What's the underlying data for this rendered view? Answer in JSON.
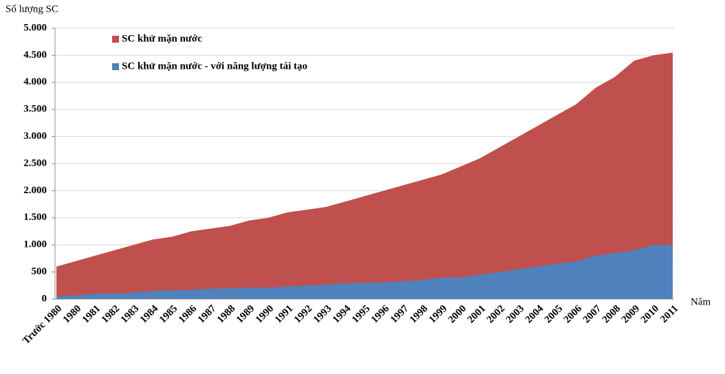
{
  "chart_data": {
    "type": "area",
    "y_label": "Số lượng SC",
    "x_label": "Năm",
    "categories": [
      "Trước 1980",
      "1980",
      "1981",
      "1982",
      "1983",
      "1984",
      "1985",
      "1986",
      "1987",
      "1988",
      "1989",
      "1990",
      "1991",
      "1992",
      "1993",
      "1994",
      "1995",
      "1996",
      "1997",
      "1998",
      "1999",
      "2000",
      "2001",
      "2002",
      "2003",
      "2004",
      "2005",
      "2006",
      "2007",
      "2008",
      "2009",
      "2010",
      "2011"
    ],
    "series": [
      {
        "name": "SC khử mặn nước",
        "color": "#c0504d",
        "values": [
          600,
          700,
          800,
          900,
          1000,
          1100,
          1150,
          1250,
          1300,
          1350,
          1450,
          1500,
          1600,
          1650,
          1700,
          1800,
          1900,
          2000,
          2100,
          2200,
          2300,
          2450,
          2600,
          2800,
          3000,
          3200,
          3400,
          3600,
          3900,
          4100,
          4400,
          4500,
          4550
        ]
      },
      {
        "name": "SC khử mặn nước - với năng lượng tái tạo",
        "color": "#4f81bd",
        "values": [
          50,
          70,
          100,
          100,
          120,
          150,
          160,
          170,
          190,
          200,
          210,
          210,
          230,
          250,
          270,
          290,
          300,
          310,
          330,
          350,
          400,
          400,
          450,
          500,
          550,
          600,
          650,
          700,
          800,
          850,
          900,
          1000,
          1000
        ]
      }
    ],
    "ylim": [
      0,
      5000
    ],
    "yticks": [
      0,
      500,
      {
        "value": 1000,
        "label": "1.000"
      },
      {
        "value": 1500,
        "label": "1.500"
      },
      {
        "value": 2000,
        "label": "2.000"
      },
      {
        "value": 2500,
        "label": "2.500"
      },
      {
        "value": 3000,
        "label": "3.000"
      },
      {
        "value": 3500,
        "label": "3.500"
      },
      {
        "value": 4000,
        "label": "4.000"
      },
      {
        "value": 4500,
        "label": "4.500"
      },
      {
        "value": 5000,
        "label": "5.000"
      }
    ],
    "grid": true,
    "legend": "top-left"
  }
}
